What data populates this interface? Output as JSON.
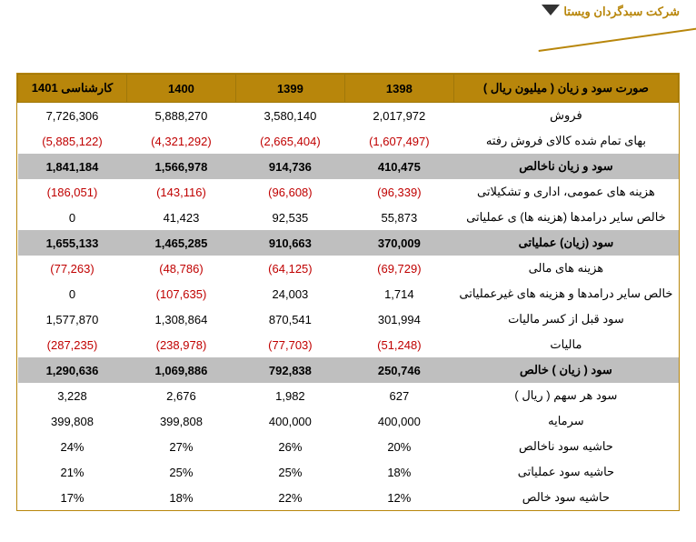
{
  "company_name": "شرکت سبدگردان ویستا",
  "table": {
    "title_col": "صورت سود و زیان ( میلیون ریال )",
    "year_cols": [
      "1398",
      "1399",
      "1400",
      "کارشناسی 1401"
    ],
    "rows": [
      {
        "type": "data",
        "label": "فروش",
        "vals": [
          "2,017,972",
          "3,580,140",
          "5,888,270",
          "7,726,306"
        ],
        "neg": [
          false,
          false,
          false,
          false
        ]
      },
      {
        "type": "data",
        "label": "بهای تمام شده کالای فروش رفته",
        "vals": [
          "(1,607,497)",
          "(2,665,404)",
          "(4,321,292)",
          "(5,885,122)"
        ],
        "neg": [
          true,
          true,
          true,
          true
        ]
      },
      {
        "type": "section",
        "label": "سود و زیان ناخالص",
        "vals": [
          "410,475",
          "914,736",
          "1,566,978",
          "1,841,184"
        ],
        "neg": [
          false,
          false,
          false,
          false
        ]
      },
      {
        "type": "data",
        "label": "هزینه های عمومی، اداری و تشکیلاتی",
        "vals": [
          "(96,339)",
          "(96,608)",
          "(143,116)",
          "(186,051)"
        ],
        "neg": [
          true,
          true,
          true,
          true
        ]
      },
      {
        "type": "data",
        "label": "خالص سایر درامدها (هزینه ها) ی عملیاتی",
        "vals": [
          "55,873",
          "92,535",
          "41,423",
          "0"
        ],
        "neg": [
          false,
          false,
          false,
          false
        ]
      },
      {
        "type": "section",
        "label": "سود (زیان) عملیاتی",
        "vals": [
          "370,009",
          "910,663",
          "1,465,285",
          "1,655,133"
        ],
        "neg": [
          false,
          false,
          false,
          false
        ]
      },
      {
        "type": "data",
        "label": "هزینه های مالی",
        "vals": [
          "(69,729)",
          "(64,125)",
          "(48,786)",
          "(77,263)"
        ],
        "neg": [
          true,
          true,
          true,
          true
        ]
      },
      {
        "type": "data",
        "label": "خالص سایر درامدها و هزینه های غیرعملیاتی",
        "vals": [
          "1,714",
          "24,003",
          "(107,635)",
          "0"
        ],
        "neg": [
          false,
          false,
          true,
          false
        ]
      },
      {
        "type": "data",
        "label": "سود قبل از کسر مالیات",
        "vals": [
          "301,994",
          "870,541",
          "1,308,864",
          "1,577,870"
        ],
        "neg": [
          false,
          false,
          false,
          false
        ]
      },
      {
        "type": "data",
        "label": "مالیات",
        "vals": [
          "(51,248)",
          "(77,703)",
          "(238,978)",
          "(287,235)"
        ],
        "neg": [
          true,
          true,
          true,
          true
        ]
      },
      {
        "type": "section",
        "label": "سود ( زیان ) خالص",
        "vals": [
          "250,746",
          "792,838",
          "1,069,886",
          "1,290,636"
        ],
        "neg": [
          false,
          false,
          false,
          false
        ]
      },
      {
        "type": "data",
        "label": "سود هر سهم ( ریال )",
        "vals": [
          "627",
          "1,982",
          "2,676",
          "3,228"
        ],
        "neg": [
          false,
          false,
          false,
          false
        ]
      },
      {
        "type": "data",
        "label": "سرمایه",
        "vals": [
          "400,000",
          "400,000",
          "399,808",
          "399,808"
        ],
        "neg": [
          false,
          false,
          false,
          false
        ]
      },
      {
        "type": "data",
        "label": "حاشیه سود ناخالص",
        "vals": [
          "20%",
          "26%",
          "27%",
          "24%"
        ],
        "neg": [
          false,
          false,
          false,
          false
        ]
      },
      {
        "type": "data",
        "label": "حاشیه سود عملیاتی",
        "vals": [
          "18%",
          "25%",
          "25%",
          "21%"
        ],
        "neg": [
          false,
          false,
          false,
          false
        ]
      },
      {
        "type": "data",
        "label": "حاشیه سود خالص",
        "vals": [
          "12%",
          "22%",
          "18%",
          "17%"
        ],
        "neg": [
          false,
          false,
          false,
          false
        ]
      }
    ]
  },
  "colors": {
    "header_bg": "#b8860b",
    "section_bg": "#bfbfbf",
    "neg_text": "#c00000"
  }
}
